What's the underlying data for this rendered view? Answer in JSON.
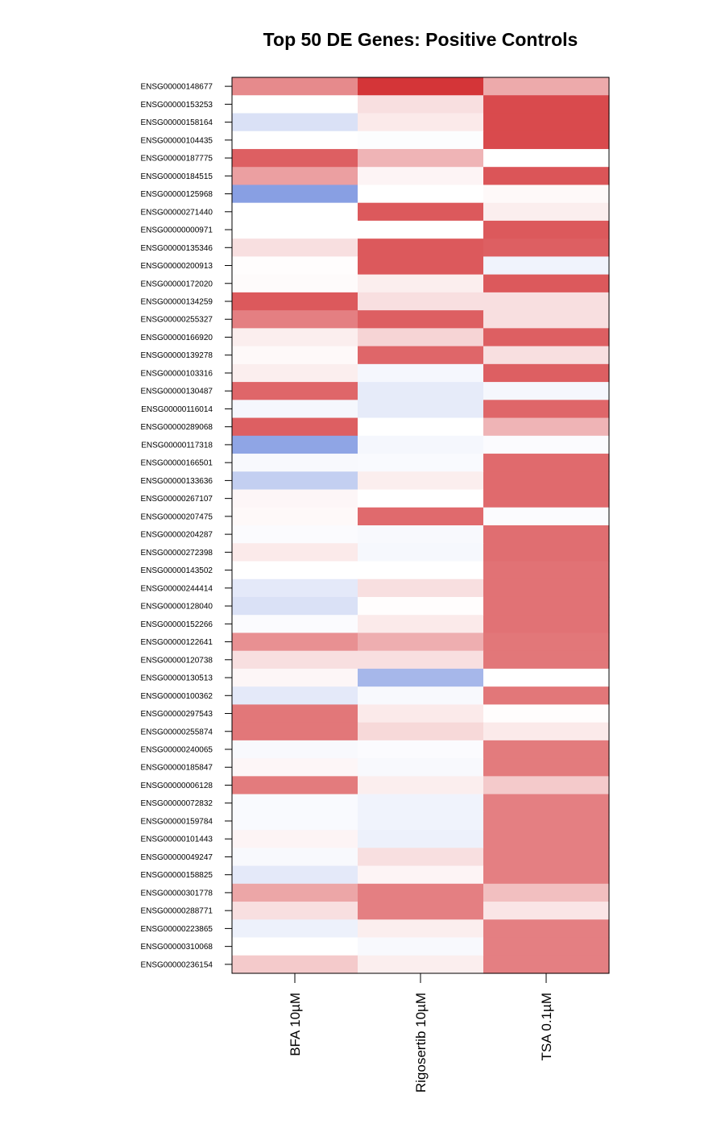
{
  "chart_data": {
    "type": "heatmap",
    "title": "Top 50 DE Genes: Positive Controls",
    "columns": [
      "BFA 10µM",
      "Rigosertib 10µM",
      "TSA 0.1µM"
    ],
    "rows": [
      "ENSG00000148677",
      "ENSG00000153253",
      "ENSG00000158164",
      "ENSG00000104435",
      "ENSG00000187775",
      "ENSG00000184515",
      "ENSG00000125968",
      "ENSG00000271440",
      "ENSG00000000971",
      "ENSG00000135346",
      "ENSG00000200913",
      "ENSG00000172020",
      "ENSG00000134259",
      "ENSG00000255327",
      "ENSG00000166920",
      "ENSG00000139278",
      "ENSG00000103316",
      "ENSG00000130487",
      "ENSG00000116014",
      "ENSG00000289068",
      "ENSG00000117318",
      "ENSG00000166501",
      "ENSG00000133636",
      "ENSG00000267107",
      "ENSG00000207475",
      "ENSG00000204287",
      "ENSG00000272398",
      "ENSG00000143502",
      "ENSG00000244414",
      "ENSG00000128040",
      "ENSG00000152266",
      "ENSG00000122641",
      "ENSG00000120738",
      "ENSG00000130513",
      "ENSG00000100362",
      "ENSG00000297543",
      "ENSG00000255874",
      "ENSG00000240065",
      "ENSG00000185847",
      "ENSG00000006128",
      "ENSG00000072832",
      "ENSG00000159784",
      "ENSG00000101443",
      "ENSG00000049247",
      "ENSG00000158825",
      "ENSG00000301778",
      "ENSG00000288771",
      "ENSG00000223865",
      "ENSG00000310068",
      "ENSG00000236154"
    ],
    "values": [
      [
        0.55,
        0.95,
        0.4
      ],
      [
        0.0,
        0.15,
        0.85
      ],
      [
        -0.25,
        0.1,
        0.85
      ],
      [
        0.0,
        -0.02,
        0.85
      ],
      [
        0.75,
        0.35,
        0.0
      ],
      [
        0.45,
        0.05,
        0.8
      ],
      [
        -0.8,
        0.0,
        0.03
      ],
      [
        0.0,
        0.78,
        0.08
      ],
      [
        0.0,
        0.0,
        0.78
      ],
      [
        0.15,
        0.78,
        0.75
      ],
      [
        0.01,
        0.78,
        -0.1
      ],
      [
        0.02,
        0.08,
        0.78
      ],
      [
        0.78,
        0.15,
        0.15
      ],
      [
        0.6,
        0.75,
        0.15
      ],
      [
        0.08,
        0.2,
        0.75
      ],
      [
        0.03,
        0.72,
        0.15
      ],
      [
        0.08,
        -0.07,
        0.75
      ],
      [
        0.72,
        -0.17,
        -0.07
      ],
      [
        -0.07,
        -0.17,
        0.72
      ],
      [
        0.75,
        0.0,
        0.35
      ],
      [
        -0.75,
        -0.07,
        -0.03
      ],
      [
        -0.05,
        -0.04,
        0.7
      ],
      [
        -0.4,
        0.08,
        0.7
      ],
      [
        0.04,
        0.0,
        0.7
      ],
      [
        0.03,
        0.7,
        -0.03
      ],
      [
        -0.03,
        -0.05,
        0.68
      ],
      [
        0.1,
        -0.06,
        0.68
      ],
      [
        0.0,
        0.0,
        0.66
      ],
      [
        -0.18,
        0.15,
        0.66
      ],
      [
        -0.25,
        0.01,
        0.66
      ],
      [
        -0.03,
        0.1,
        0.66
      ],
      [
        0.52,
        0.38,
        0.64
      ],
      [
        0.15,
        0.15,
        0.64
      ],
      [
        0.04,
        -0.6,
        0.0
      ],
      [
        -0.18,
        -0.05,
        0.64
      ],
      [
        0.64,
        0.1,
        0.01
      ],
      [
        0.64,
        0.18,
        0.1
      ],
      [
        -0.05,
        -0.03,
        0.62
      ],
      [
        0.04,
        -0.05,
        0.62
      ],
      [
        0.62,
        0.08,
        0.25
      ],
      [
        -0.04,
        -0.1,
        0.6
      ],
      [
        -0.04,
        -0.1,
        0.6
      ],
      [
        0.05,
        -0.12,
        0.6
      ],
      [
        -0.05,
        0.15,
        0.6
      ],
      [
        -0.18,
        0.05,
        0.6
      ],
      [
        0.42,
        0.6,
        0.3
      ],
      [
        0.15,
        0.6,
        0.12
      ],
      [
        -0.12,
        0.08,
        0.6
      ],
      [
        0.0,
        -0.05,
        0.6
      ],
      [
        0.25,
        0.08,
        0.6
      ]
    ],
    "color_scale": {
      "low": "#6a87dc",
      "mid": "#ffffff",
      "high": "#d22a2e"
    }
  }
}
